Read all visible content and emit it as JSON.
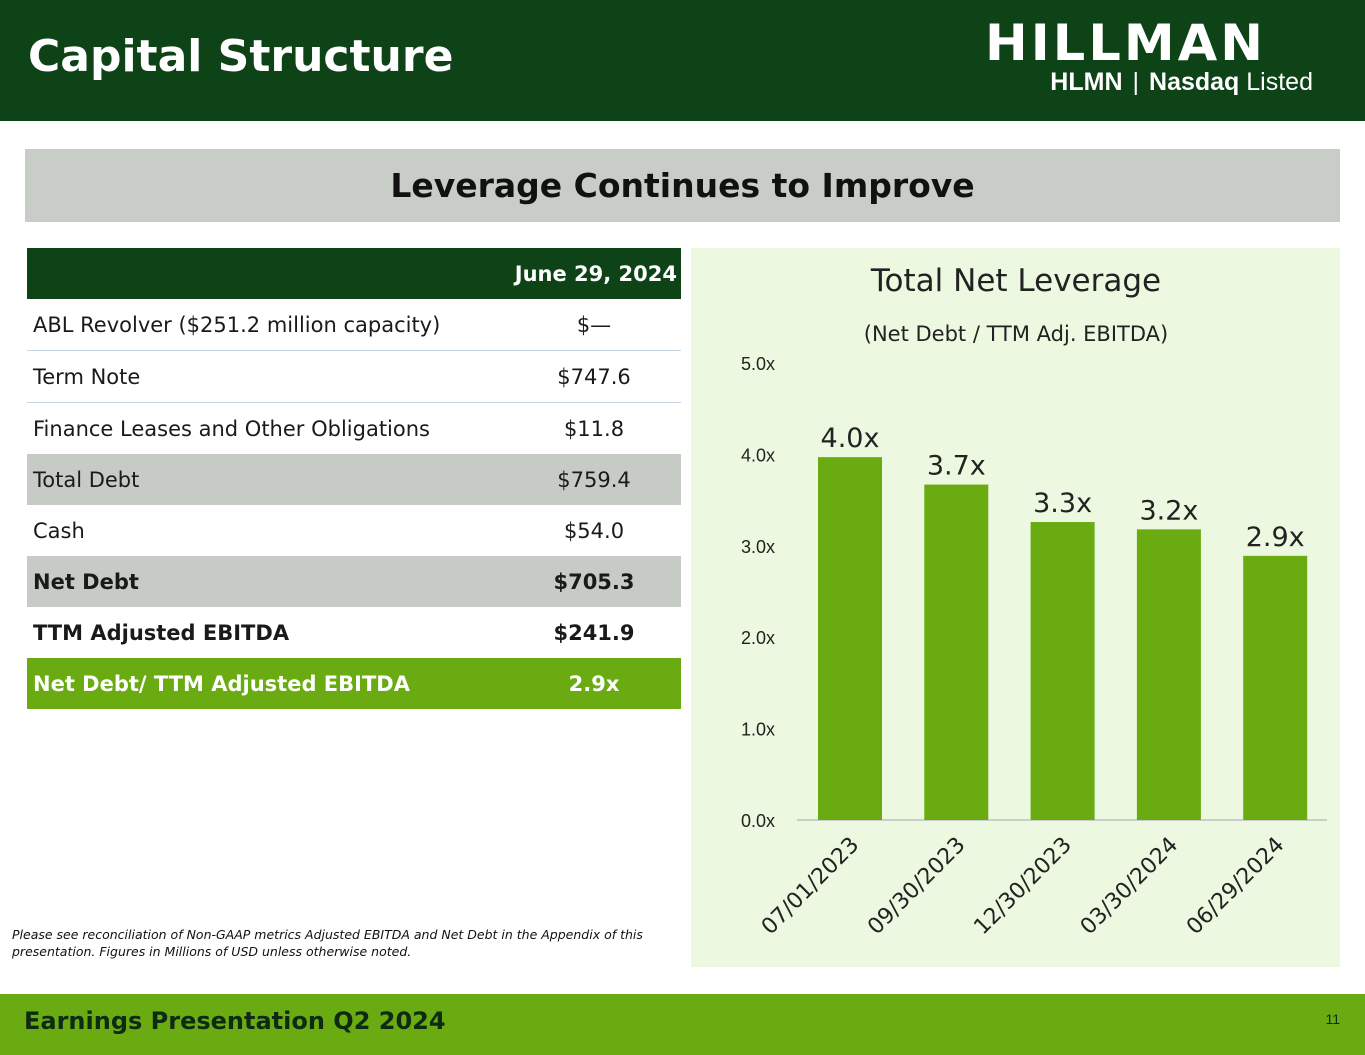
{
  "header": {
    "title": "Capital Structure",
    "logo_wordmark": "HILLMAN",
    "ticker": "HLMN",
    "separator": "|",
    "exchange_bold": "Nasdaq",
    "exchange_rest": "Listed"
  },
  "section": {
    "title": "Leverage Continues to Improve"
  },
  "table": {
    "column_header": "June 29, 2024",
    "rows": [
      {
        "label": "ABL Revolver ($251.2 million capacity)",
        "value": "$—"
      },
      {
        "label": "Term Note",
        "value": "$747.6"
      },
      {
        "label": "Finance Leases and Other Obligations",
        "value": "$11.8"
      },
      {
        "label": "Total Debt",
        "value": "$759.4"
      },
      {
        "label": "Cash",
        "value": "$54.0"
      },
      {
        "label": "Net Debt",
        "value": "$705.3"
      },
      {
        "label": "TTM Adjusted EBITDA",
        "value": "$241.9"
      },
      {
        "label": "Net Debt/ TTM Adjusted EBITDA",
        "value": "2.9x"
      }
    ]
  },
  "footnote": "Please see reconciliation of Non-GAAP metrics Adjusted EBITDA and Net Debt in the Appendix of this presentation. Figures in Millions of USD unless otherwise noted.",
  "chart_data": {
    "type": "bar",
    "title": "Total Net Leverage",
    "subtitle": "(Net Debt / TTM Adj. EBITDA)",
    "categories": [
      "07/01/2023",
      "09/30/2023",
      "12/30/2023",
      "03/30/2024",
      "06/29/2024"
    ],
    "values": [
      3.97,
      3.67,
      3.26,
      3.18,
      2.89
    ],
    "data_labels": [
      "4.0x",
      "3.7x",
      "3.3x",
      "3.2x",
      "2.9x"
    ],
    "ylim": [
      0,
      5
    ],
    "yticks": [
      "0.0x",
      "1.0x",
      "2.0x",
      "3.0x",
      "4.0x",
      "5.0x"
    ],
    "grid": false,
    "bar_color": "#6aab12"
  },
  "footer": {
    "text": "Earnings Presentation Q2 2024",
    "page_number": "11"
  },
  "colors": {
    "dark_green": "#0e4217",
    "accent_green": "#6aab12",
    "panel_bg": "#ecf8e0",
    "banner_grey": "#c9cdc8"
  }
}
